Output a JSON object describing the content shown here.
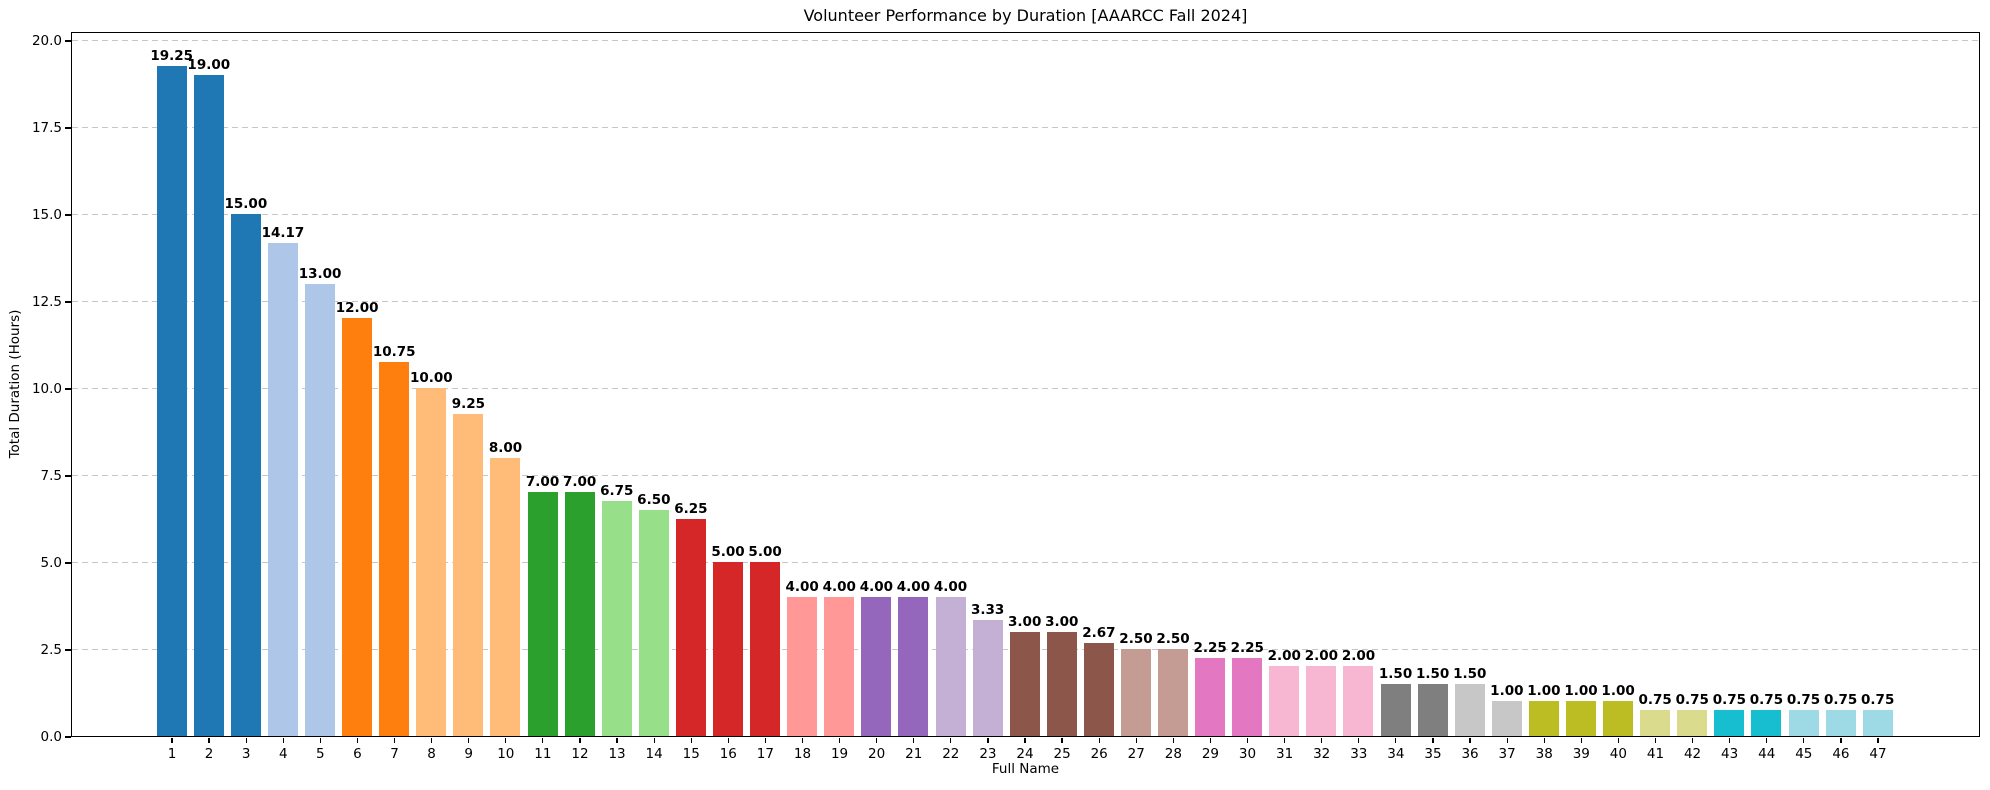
{
  "chart_data": {
    "type": "bar",
    "title": "Volunteer Performance by Duration [AAARCC Fall 2024]",
    "xlabel": "Full Name",
    "ylabel": "Total Duration (Hours)",
    "categories": [
      "1",
      "2",
      "3",
      "4",
      "5",
      "6",
      "7",
      "8",
      "9",
      "10",
      "11",
      "12",
      "13",
      "14",
      "15",
      "16",
      "17",
      "18",
      "19",
      "20",
      "21",
      "22",
      "23",
      "24",
      "25",
      "26",
      "27",
      "28",
      "29",
      "30",
      "31",
      "32",
      "33",
      "34",
      "35",
      "36",
      "37",
      "38",
      "39",
      "40",
      "41",
      "42",
      "43",
      "44",
      "45",
      "46",
      "47"
    ],
    "values": [
      19.25,
      19.0,
      15.0,
      14.17,
      13.0,
      12.0,
      10.75,
      10.0,
      9.25,
      8.0,
      7.0,
      7.0,
      6.75,
      6.5,
      6.25,
      5.0,
      5.0,
      4.0,
      4.0,
      4.0,
      4.0,
      4.0,
      3.33,
      3.0,
      3.0,
      2.67,
      2.5,
      2.5,
      2.25,
      2.25,
      2.0,
      2.0,
      2.0,
      1.5,
      1.5,
      1.5,
      1.0,
      1.0,
      1.0,
      1.0,
      0.75,
      0.75,
      0.75,
      0.75,
      0.75,
      0.75,
      0.75
    ],
    "bar_labels": [
      "19.25",
      "19.00",
      "15.00",
      "14.17",
      "13.00",
      "12.00",
      "10.75",
      "10.00",
      "9.25",
      "8.00",
      "7.00",
      "7.00",
      "6.75",
      "6.50",
      "6.25",
      "5.00",
      "5.00",
      "4.00",
      "4.00",
      "4.00",
      "4.00",
      "4.00",
      "3.33",
      "3.00",
      "3.00",
      "2.67",
      "2.50",
      "2.50",
      "2.25",
      "2.25",
      "2.00",
      "2.00",
      "2.00",
      "1.50",
      "1.50",
      "1.50",
      "1.00",
      "1.00",
      "1.00",
      "1.00",
      "0.75",
      "0.75",
      "0.75",
      "0.75",
      "0.75",
      "0.75",
      "0.75"
    ],
    "bar_colors": [
      "#1f77b4",
      "#1f77b4",
      "#1f77b4",
      "#aec7e8",
      "#aec7e8",
      "#ff7f0e",
      "#ff7f0e",
      "#ffbb78",
      "#ffbb78",
      "#ffbb78",
      "#2ca02c",
      "#2ca02c",
      "#98df8a",
      "#98df8a",
      "#d62728",
      "#d62728",
      "#d62728",
      "#ff9896",
      "#ff9896",
      "#9467bd",
      "#9467bd",
      "#c5b0d5",
      "#c5b0d5",
      "#8c564b",
      "#8c564b",
      "#8c564b",
      "#c49c94",
      "#c49c94",
      "#e377c2",
      "#e377c2",
      "#f7b6d2",
      "#f7b6d2",
      "#f7b6d2",
      "#7f7f7f",
      "#7f7f7f",
      "#c7c7c7",
      "#c7c7c7",
      "#bcbd22",
      "#bcbd22",
      "#bcbd22",
      "#dbdb8d",
      "#dbdb8d",
      "#17becf",
      "#17becf",
      "#9edae5",
      "#9edae5",
      "#9edae5"
    ],
    "yticks": [
      "0.0",
      "2.5",
      "5.0",
      "7.5",
      "10.0",
      "12.5",
      "15.0",
      "17.5",
      "20.0"
    ],
    "ytick_values": [
      0,
      2.5,
      5,
      7.5,
      10,
      12.5,
      15,
      17.5,
      20
    ],
    "ylim": [
      0,
      20.26
    ],
    "grid": "horizontal-dashed",
    "grid_color": "#c6c6c6",
    "spine_color": "#000000",
    "background": "#ffffff",
    "legend": "none"
  }
}
